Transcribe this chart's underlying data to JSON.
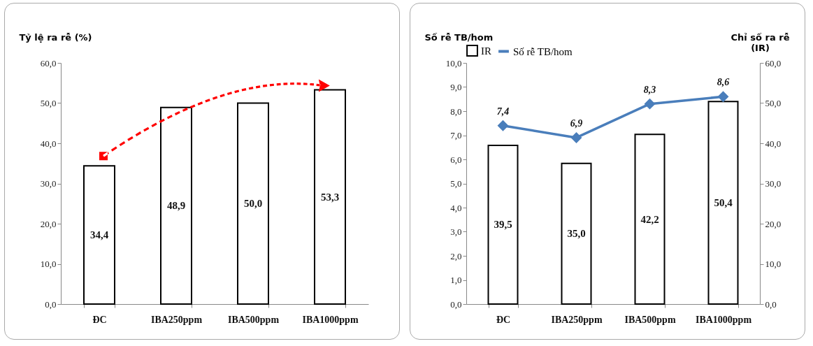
{
  "chart_data": [
    {
      "type": "bar",
      "ylabel": "Tỷ lệ ra rễ (%)",
      "categories": [
        "ĐC",
        "IBA250ppm",
        "IBA500ppm",
        "IBA1000ppm"
      ],
      "values": [
        34.4,
        48.9,
        50.0,
        53.3
      ],
      "value_labels": [
        "34,4",
        "48,9",
        "50,0",
        "53,3"
      ],
      "color": "#ffffff",
      "ylim": [
        0,
        60
      ],
      "yticks": [
        {
          "value": 0,
          "label": "0,0"
        },
        {
          "value": 10,
          "label": "10,0"
        },
        {
          "value": 20,
          "label": "20,0"
        },
        {
          "value": 30,
          "label": "30,0"
        },
        {
          "value": 40,
          "label": "40,0"
        },
        {
          "value": 50,
          "label": "50,0"
        },
        {
          "value": 60,
          "label": "60,0"
        }
      ]
    },
    {
      "type": "bar",
      "ylabel": "Số rễ TB/hom",
      "y2label": "Chỉ số ra rễ (IR)",
      "categories": [
        "ĐC",
        "IBA250ppm",
        "IBA500ppm",
        "IBA1000ppm"
      ],
      "legend": "top",
      "marker": "diamond",
      "series": [
        {
          "name": "IR",
          "color": "#ffffff",
          "axis": "y2",
          "values": [
            39.5,
            35.0,
            42.2,
            50.4
          ],
          "value_labels": [
            "39,5",
            "35,0",
            "42,2",
            "50,4"
          ]
        },
        {
          "name": "Số rễ TB/hom",
          "type": "line",
          "color": "#4a7ebb",
          "values": [
            7.4,
            6.9,
            8.3,
            8.6
          ],
          "value_labels": [
            "7,4",
            "6,9",
            "8,3",
            "8,6"
          ]
        }
      ],
      "ylim": [
        0,
        10
      ],
      "yticks": [
        {
          "value": 0,
          "label": "0,0"
        },
        {
          "value": 1,
          "label": "1,0"
        },
        {
          "value": 2,
          "label": "2,0"
        },
        {
          "value": 3,
          "label": "3,0"
        },
        {
          "value": 4,
          "label": "4,0"
        },
        {
          "value": 5,
          "label": "5,0"
        },
        {
          "value": 6,
          "label": "6,0"
        },
        {
          "value": 7,
          "label": "7,0"
        },
        {
          "value": 8,
          "label": "8,0"
        },
        {
          "value": 9,
          "label": "9,0"
        },
        {
          "value": 10,
          "label": "10,0"
        }
      ],
      "y2lim": [
        0,
        60
      ],
      "y2ticks": [
        {
          "value": 0,
          "label": "0,0"
        },
        {
          "value": 10,
          "label": "10,0"
        },
        {
          "value": 20,
          "label": "20,0"
        },
        {
          "value": 30,
          "label": "30,0"
        },
        {
          "value": 40,
          "label": "40,0"
        },
        {
          "value": 50,
          "label": "50,0"
        },
        {
          "value": 60,
          "label": "60,0"
        }
      ]
    }
  ]
}
